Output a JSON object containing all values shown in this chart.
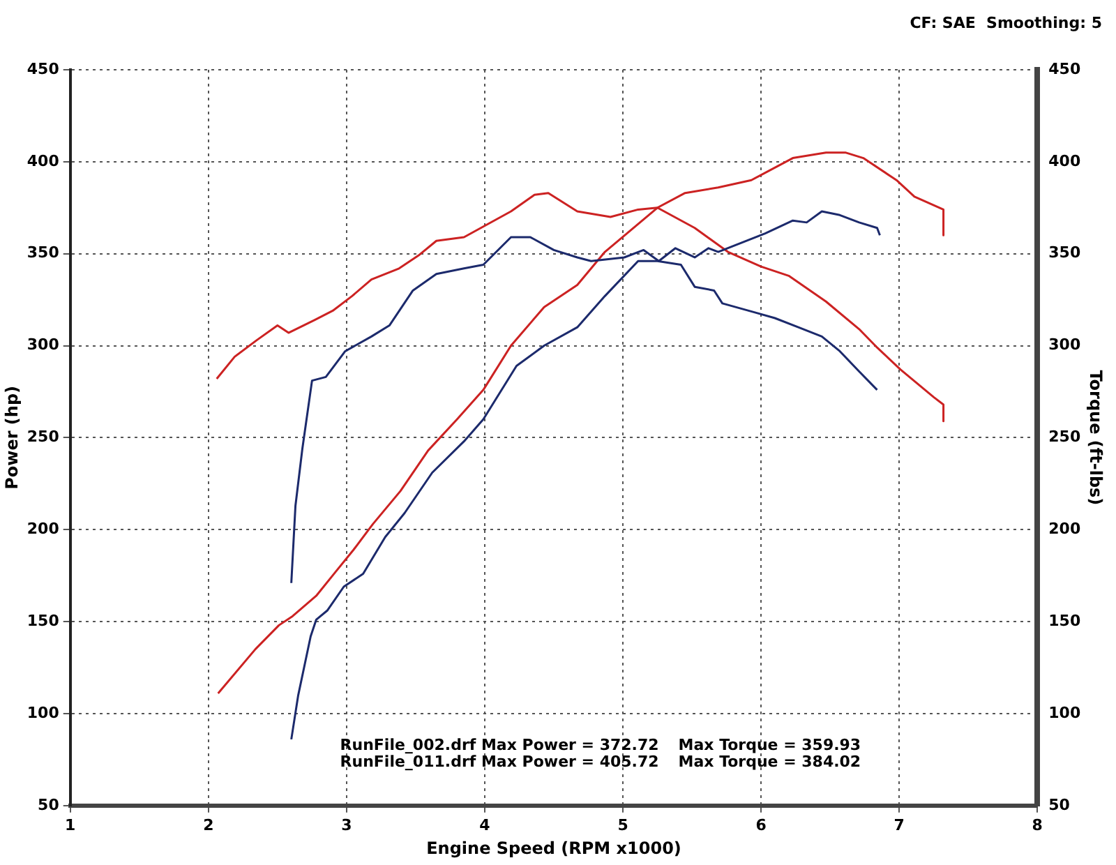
{
  "chart_data": {
    "type": "line",
    "xlabel": "Engine Speed (RPM x1000)",
    "ylabel": "Power (hp)",
    "y2label": "Torque (ft-lbs)",
    "xlim": [
      1,
      8
    ],
    "xticks": [
      1,
      2,
      3,
      4,
      5,
      6,
      7,
      8
    ],
    "ylim": [
      50,
      450
    ],
    "yticks": [
      50,
      100,
      150,
      200,
      250,
      300,
      350,
      400,
      450
    ],
    "y2lim": [
      50,
      450
    ],
    "y2ticks": [
      50,
      100,
      150,
      200,
      250,
      300,
      350,
      400,
      450
    ],
    "grid": true,
    "legend": false,
    "marker": "none",
    "line_style": "solid",
    "annotations": [
      "CF: SAE  Smoothing: 5",
      "RunFile_002.drf Max Power = 372.72",
      "Max Torque = 359.93",
      "RunFile_011.drf Max Power = 405.72",
      "Max Torque = 384.02"
    ],
    "series": [
      {
        "color": "#1c2a6c",
        "x": [
          2.6,
          2.65,
          2.74,
          2.78,
          2.86,
          2.98,
          3.12,
          3.28,
          3.42,
          3.62,
          3.85,
          3.99,
          4.23,
          4.43,
          4.67,
          4.87,
          5.11,
          5.25,
          5.42,
          5.52,
          5.66,
          5.72,
          5.96,
          6.1,
          6.27,
          6.44,
          6.57,
          6.71,
          6.84
        ],
        "values": [
          86,
          110,
          142,
          151,
          156,
          169,
          176,
          196,
          209,
          231,
          248,
          260,
          289,
          300,
          310,
          327,
          346,
          346,
          344,
          332,
          330,
          323,
          318,
          315,
          310,
          305,
          297,
          286,
          276
        ]
      },
      {
        "color": "#1c2a6c",
        "axis": "y2",
        "x": [
          2.6,
          2.63,
          2.68,
          2.75,
          2.85,
          2.99,
          3.18,
          3.31,
          3.48,
          3.65,
          3.85,
          3.99,
          4.19,
          4.33,
          4.5,
          4.67,
          4.77,
          5.01,
          5.15,
          5.26,
          5.38,
          5.52,
          5.62,
          5.69,
          5.86,
          6.03,
          6.23,
          6.33,
          6.44,
          6.57,
          6.71,
          6.84,
          6.86
        ],
        "values": [
          171,
          213,
          244,
          281,
          283,
          297,
          305,
          311,
          330,
          339,
          342,
          344,
          359,
          359,
          352,
          348,
          346,
          348,
          352,
          346,
          353,
          348,
          353,
          351,
          356,
          361,
          368,
          367,
          373,
          371,
          367,
          364,
          360
        ]
      },
      {
        "color": "#cc2222",
        "x": [
          2.07,
          2.34,
          2.51,
          2.61,
          2.78,
          2.92,
          3.05,
          3.19,
          3.39,
          3.59,
          3.8,
          3.99,
          4.19,
          4.43,
          4.67,
          4.87,
          5.25,
          5.45,
          5.69,
          5.93,
          6.23,
          6.47,
          6.61,
          6.74,
          6.98,
          7.11,
          7.32,
          7.32
        ],
        "values": [
          111,
          135,
          148,
          153,
          164,
          177,
          189,
          203,
          221,
          243,
          260,
          276,
          300,
          321,
          333,
          351,
          375,
          383,
          386,
          390,
          402,
          405,
          405,
          402,
          390,
          381,
          374,
          360
        ]
      },
      {
        "color": "#cc2222",
        "axis": "y2",
        "x": [
          2.06,
          2.19,
          2.35,
          2.5,
          2.58,
          2.77,
          2.9,
          3.04,
          3.18,
          3.38,
          3.52,
          3.65,
          3.85,
          4.02,
          4.19,
          4.36,
          4.46,
          4.67,
          4.91,
          5.11,
          5.25,
          5.52,
          5.76,
          6.0,
          6.2,
          6.47,
          6.71,
          6.84,
          7.01,
          7.25,
          7.32,
          7.32
        ],
        "values": [
          282,
          294,
          303,
          311,
          307,
          314,
          319,
          327,
          336,
          342,
          349,
          357,
          359,
          366,
          373,
          382,
          383,
          373,
          370,
          374,
          375,
          364,
          351,
          343,
          338,
          324,
          309,
          299,
          287,
          272,
          268,
          259
        ]
      }
    ]
  }
}
